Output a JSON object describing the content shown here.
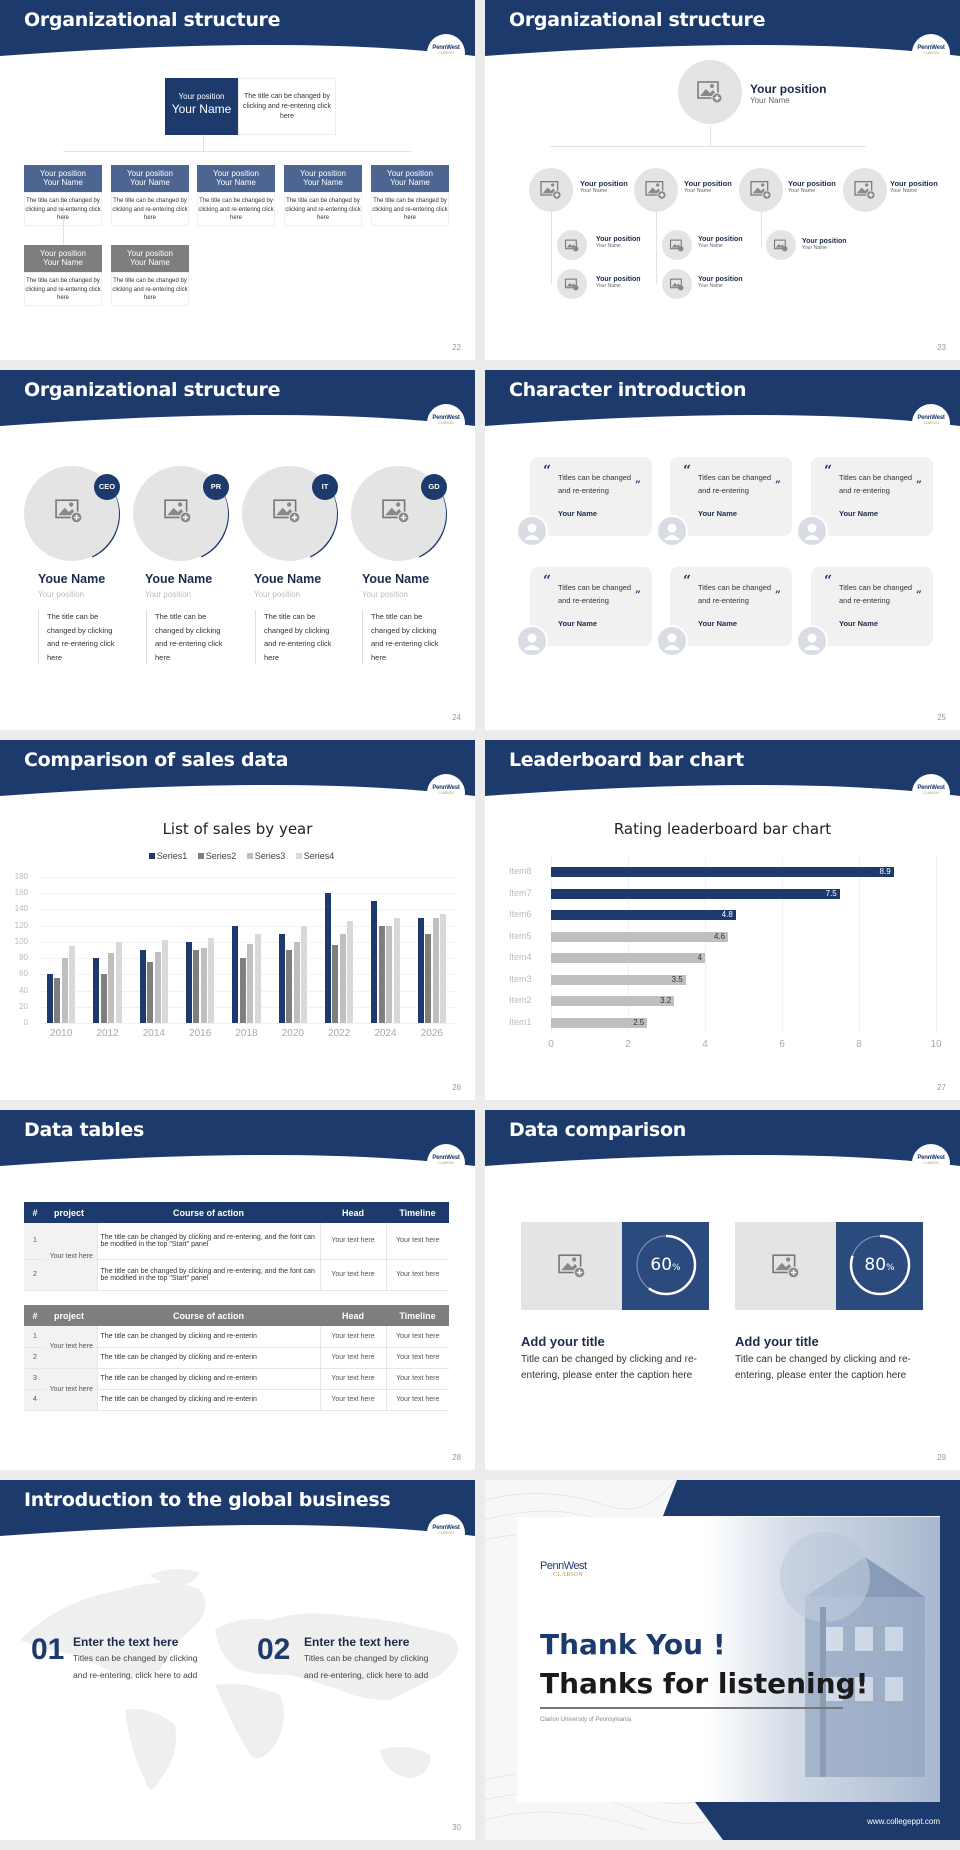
{
  "brand": {
    "logo_text": "PennWest",
    "logo_sub": "CLARION",
    "navy": "#1c3a6b",
    "mid_blue": "#4c6691",
    "gray": "#7e7e7e",
    "placeholder_gray": "#e5e4e4"
  },
  "slides": [
    {
      "page": "22",
      "title": "Organizational structure",
      "top": {
        "position": "Your position",
        "name": "Your Name",
        "desc": "The title can be changed by clicking and re-entering click here"
      },
      "cards": [
        {
          "position": "Your position",
          "name": "Your Name",
          "desc": "The title can be changed by clicking and re-entering click here",
          "style": "blue"
        },
        {
          "position": "Your position",
          "name": "Your Name",
          "desc": "The title can be changed by clicking and re-entering click here",
          "style": "blue"
        },
        {
          "position": "Your position",
          "name": "Your Name",
          "desc": "The title can be changed by clicking and re-entering click here",
          "style": "blue"
        },
        {
          "position": "Your position",
          "name": "Your Name",
          "desc": "The title can be changed by clicking and re-entering click here",
          "style": "blue"
        },
        {
          "position": "Your position",
          "name": "Your Name",
          "desc": "The title can be changed by clicking and re-entering click here",
          "style": "blue"
        },
        {
          "position": "Your position",
          "name": "Your Name",
          "desc": "The title can be changed by clicking and re-entering click here",
          "style": "gray"
        },
        {
          "position": "Your position",
          "name": "Your Name",
          "desc": "The title can be changed by clicking and re-entering click here",
          "style": "gray"
        }
      ]
    },
    {
      "page": "23",
      "title": "Organizational structure",
      "top": {
        "position": "Your position",
        "name": "Your Name"
      },
      "level2": [
        {
          "position": "Your position",
          "name": "Your Name"
        },
        {
          "position": "Your position",
          "name": "Your Name"
        },
        {
          "position": "Your position",
          "name": "Your Name"
        },
        {
          "position": "Your position",
          "name": "Your Name"
        }
      ],
      "level3": [
        {
          "position": "Your position",
          "name": "Your Name"
        },
        {
          "position": "Your position",
          "name": "Your Name"
        },
        {
          "position": "Your position",
          "name": "Your Name"
        },
        {
          "position": "Your position",
          "name": "Your Name"
        },
        {
          "position": "Your position",
          "name": "Your Name"
        }
      ]
    },
    {
      "page": "24",
      "title": "Organizational structure",
      "people": [
        {
          "badge": "CEO",
          "name": "Youe Name",
          "position": "Your position",
          "desc": "The title can be changed by clicking and re-entering click here"
        },
        {
          "badge": "PR",
          "name": "Youe Name",
          "position": "Your position",
          "desc": "The title can be changed by clicking and re-entering click here"
        },
        {
          "badge": "IT",
          "name": "Youe Name",
          "position": "Your position",
          "desc": "The title can be changed by clicking and re-entering click here"
        },
        {
          "badge": "GD",
          "name": "Youe Name",
          "position": "Your position",
          "desc": "The title can be changed by clicking and re-entering click here"
        }
      ]
    },
    {
      "page": "25",
      "title": "Character introduction",
      "quotes": [
        {
          "line1": "Titles can be changed",
          "line2": "and re-entering",
          "name": "Your Name"
        },
        {
          "line1": "Titles can be changed",
          "line2": "and re-entering",
          "name": "Your Name"
        },
        {
          "line1": "Titles can be changed",
          "line2": "and re-entering",
          "name": "Your Name"
        },
        {
          "line1": "Titles can be changed",
          "line2": "and re-entering",
          "name": "Your Name"
        },
        {
          "line1": "Titles can be changed",
          "line2": "and re-entering",
          "name": "Your Name"
        },
        {
          "line1": "Titles can be changed",
          "line2": "and re-entering",
          "name": "Your Name"
        }
      ],
      "open_quote": "“",
      "close_quote": "”"
    },
    {
      "page": "26",
      "title": "Comparison of sales data"
    },
    {
      "page": "27",
      "title": "Leaderboard bar chart"
    },
    {
      "page": "28",
      "title": "Data tables",
      "columns": [
        "#",
        "project",
        "Course of action",
        "Head",
        "Timeline"
      ],
      "table1": {
        "project": "Your text here",
        "rows": [
          {
            "idx": "1",
            "action": "The title can be changed by clicking and re-entering, and the font can be modified in the top \"Start\" panel",
            "head": "Your text here",
            "timeline": "Your text here"
          },
          {
            "idx": "2",
            "action": "The title can be changed by clicking and re-entering, and the font can be modified in the top \"Start\" panel",
            "head": "Your text here",
            "timeline": "Your text here"
          }
        ]
      },
      "table2": {
        "projects": [
          "Your text here",
          "Your text here"
        ],
        "rows": [
          {
            "idx": "1",
            "action": "The title can be changed by clicking and re-enterin",
            "head": "Your text here",
            "timeline": "Your text here"
          },
          {
            "idx": "2",
            "action": "The title can be changed by clicking and re-enterin",
            "head": "Your text here",
            "timeline": "Your text here"
          },
          {
            "idx": "3",
            "action": "The title can be changed by clicking and re-enterin",
            "head": "Your text here",
            "timeline": "Your text here"
          },
          {
            "idx": "4",
            "action": "The title can be changed by clicking and re-enterin",
            "head": "Your text here",
            "timeline": "Your text here"
          }
        ]
      }
    },
    {
      "page": "29",
      "title": "Data comparison",
      "items": [
        {
          "percent": "60",
          "unit": "%",
          "value": 60,
          "heading": "Add your title",
          "text": "Title can be changed by clicking and re-entering, please enter the caption here"
        },
        {
          "percent": "80",
          "unit": "%",
          "value": 80,
          "heading": "Add your title",
          "text": "Title can be changed by clicking and re-entering, please enter the caption here"
        }
      ]
    },
    {
      "page": "30",
      "title": "Introduction to the global business",
      "items": [
        {
          "num": "01",
          "heading": "Enter the text here",
          "line1": "Titles can be changed by clicking",
          "line2": "and re-entering, click here to add"
        },
        {
          "num": "02",
          "heading": "Enter the text here",
          "line1": "Titles can be changed by clicking",
          "line2": "and re-entering, click here to add"
        }
      ]
    },
    {
      "title_line1": "Thank You !",
      "title_line2": "Thanks for listening!",
      "subtitle": "Clarion University of Pennsylvania",
      "website": "www.collegeppt.com"
    }
  ],
  "chart_data": [
    {
      "type": "bar",
      "title": "List of sales by year",
      "categories": [
        "2010",
        "2012",
        "2014",
        "2016",
        "2018",
        "2020",
        "2022",
        "2024",
        "2026"
      ],
      "series": [
        {
          "name": "Series1",
          "color": "#1c3a6b",
          "values": [
            60,
            80,
            90,
            100,
            120,
            110,
            160,
            150,
            130
          ]
        },
        {
          "name": "Series2",
          "color": "#7f7f7f",
          "values": [
            55,
            60,
            75,
            90,
            80,
            90,
            96,
            120,
            110
          ]
        },
        {
          "name": "Series3",
          "color": "#bfbfbf",
          "values": [
            80,
            86,
            88,
            92,
            98,
            100,
            110,
            120,
            130
          ]
        },
        {
          "name": "Series4",
          "color": "#d9d9d9",
          "values": [
            95,
            100,
            102,
            105,
            110,
            120,
            126,
            130,
            135
          ]
        }
      ],
      "yticks": [
        "0",
        "20",
        "40",
        "60",
        "80",
        "100",
        "120",
        "140",
        "160",
        "180"
      ],
      "ylim": [
        0,
        180
      ],
      "xlabel": "",
      "ylabel": "",
      "legend_position": "top",
      "grid": true
    },
    {
      "type": "bar",
      "orientation": "horizontal",
      "title": "Rating leaderboard bar chart",
      "categories": [
        "Item8",
        "Item7",
        "Item6",
        "Item5",
        "Item4",
        "Item3",
        "Item2",
        "Item1"
      ],
      "values": [
        8.9,
        7.5,
        4.8,
        4.6,
        4,
        3.5,
        3.2,
        2.5
      ],
      "labels": [
        "8.9",
        "7.5",
        "4.8",
        "4.6",
        "4",
        "3.5",
        "3.2",
        "2.5"
      ],
      "highlight_top": 3,
      "xticks": [
        "0",
        "2",
        "4",
        "6",
        "8",
        "10"
      ],
      "xlim": [
        0,
        10
      ],
      "grid": true
    }
  ]
}
